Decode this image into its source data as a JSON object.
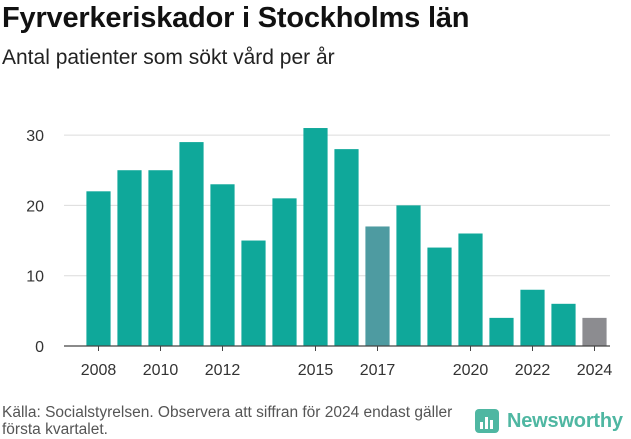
{
  "header": {
    "title": "Fyrverkeriskador i Stockholms län",
    "subtitle": "Antal patienter som sökt vård per år"
  },
  "footer": {
    "source": "Källa: Socialstyrelsen. Observera att siffran för 2024 endast gäller första kvartalet.",
    "brand": "Newsworthy"
  },
  "colors": {
    "bar": "#0fa89a",
    "bar_highlight": "#4e9ba1",
    "bar_partial": "#8c8c90",
    "brand": "#4fb7a2"
  },
  "chart_data": {
    "type": "bar",
    "title": "Fyrverkeriskador i Stockholms län",
    "subtitle": "Antal patienter som sökt vård per år",
    "categories": [
      "2008",
      "2009",
      "2010",
      "2011",
      "2012",
      "2013",
      "2014",
      "2015",
      "2016",
      "2017",
      "2018",
      "2019",
      "2020",
      "2021",
      "2022",
      "2023",
      "2024"
    ],
    "values": [
      22,
      25,
      25,
      29,
      23,
      15,
      21,
      31,
      28,
      17,
      20,
      14,
      16,
      4,
      8,
      6,
      4
    ],
    "tick_labels_x": [
      "2008",
      "2010",
      "2012",
      "2015",
      "2017",
      "2020",
      "2022",
      "2024"
    ],
    "yticks": [
      0,
      10,
      20,
      30
    ],
    "ylim": [
      0,
      32
    ],
    "grid": true,
    "legend": "none",
    "highlighted_category": "2017",
    "partial_category": "2024"
  }
}
